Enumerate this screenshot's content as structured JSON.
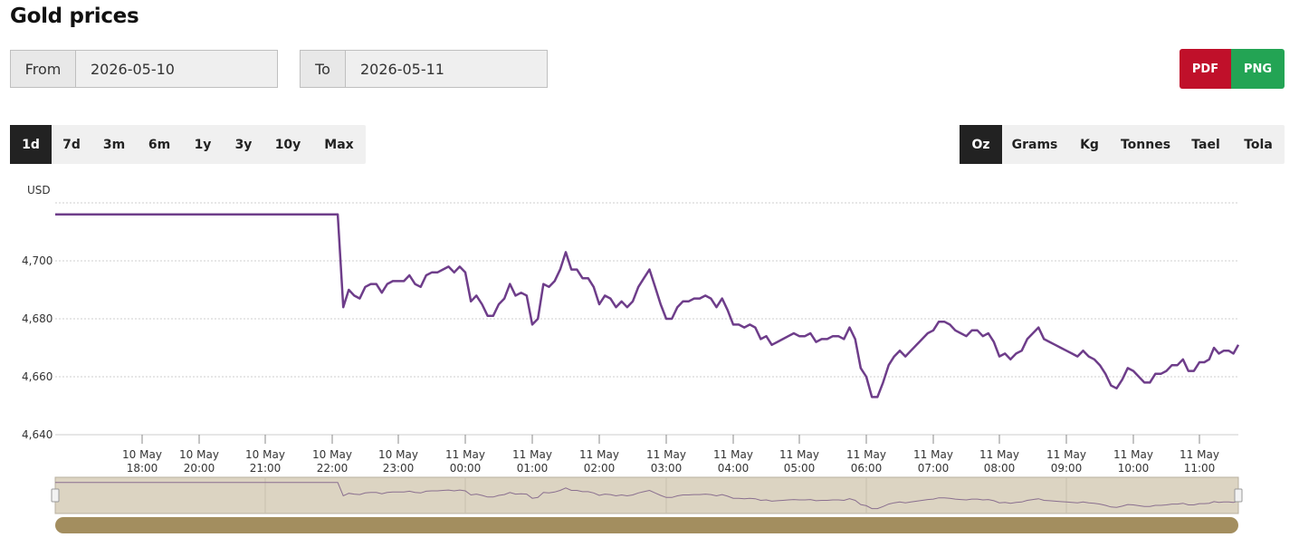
{
  "page": {
    "title": "Gold prices"
  },
  "date_range": {
    "from_label": "From",
    "from_value": "2026-05-10",
    "to_label": "To",
    "to_value": "2026-05-11"
  },
  "export": {
    "pdf_label": "PDF",
    "png_label": "PNG",
    "pdf_color": "#c0102a",
    "png_color": "#23a454"
  },
  "range_buttons": [
    {
      "label": "1d",
      "active": true
    },
    {
      "label": "7d",
      "active": false
    },
    {
      "label": "3m",
      "active": false
    },
    {
      "label": "6m",
      "active": false
    },
    {
      "label": "1y",
      "active": false
    },
    {
      "label": "3y",
      "active": false
    },
    {
      "label": "10y",
      "active": false
    },
    {
      "label": "Max",
      "active": false
    }
  ],
  "unit_buttons": [
    {
      "label": "Oz",
      "active": true
    },
    {
      "label": "Grams",
      "active": false
    },
    {
      "label": "Kg",
      "active": false
    },
    {
      "label": "Tonnes",
      "active": false
    },
    {
      "label": "Tael",
      "active": false
    },
    {
      "label": "Tola",
      "active": false
    }
  ],
  "chart_data": {
    "type": "line",
    "title": "",
    "ylabel": "USD",
    "ylim": [
      4640,
      4720
    ],
    "yticks": [
      4640,
      4660,
      4680,
      4700
    ],
    "ytick_labels": [
      "4,640",
      "4,660",
      "4,680",
      "4,700"
    ],
    "grid": true,
    "line_color": "#6e3d8a",
    "navigator_fill": "#dcd4c2",
    "scrollbar_color": "#a38e5f",
    "x_range": [
      "10 May 16:10",
      "11 May 11:40"
    ],
    "x_ticks": [
      {
        "label": [
          "10 May",
          "18:00"
        ],
        "x": "10 May 18:00"
      },
      {
        "label": [
          "10 May",
          "20:00"
        ],
        "x": "10 May 20:00"
      },
      {
        "label": [
          "10 May",
          "21:00"
        ],
        "x": "10 May 21:00"
      },
      {
        "label": [
          "10 May",
          "22:00"
        ],
        "x": "10 May 22:00"
      },
      {
        "label": [
          "10 May",
          "23:00"
        ],
        "x": "10 May 23:00"
      },
      {
        "label": [
          "11 May",
          "00:00"
        ],
        "x": "11 May 00:00"
      },
      {
        "label": [
          "11 May",
          "01:00"
        ],
        "x": "11 May 01:00"
      },
      {
        "label": [
          "11 May",
          "02:00"
        ],
        "x": "11 May 02:00"
      },
      {
        "label": [
          "11 May",
          "03:00"
        ],
        "x": "11 May 03:00"
      },
      {
        "label": [
          "11 May",
          "04:00"
        ],
        "x": "11 May 04:00"
      },
      {
        "label": [
          "11 May",
          "05:00"
        ],
        "x": "11 May 05:00"
      },
      {
        "label": [
          "11 May",
          "06:00"
        ],
        "x": "11 May 06:00"
      },
      {
        "label": [
          "11 May",
          "07:00"
        ],
        "x": "11 May 07:00"
      },
      {
        "label": [
          "11 May",
          "08:00"
        ],
        "x": "11 May 08:00"
      },
      {
        "label": [
          "11 May",
          "09:00"
        ],
        "x": "11 May 09:00"
      },
      {
        "label": [
          "11 May",
          "10:00"
        ],
        "x": "11 May 10:00"
      },
      {
        "label": [
          "11 May",
          "11:00"
        ],
        "x": "11 May 11:00"
      }
    ],
    "series": [
      {
        "x": [
          "10 May 16:10",
          "10 May 22:05",
          "10 May 22:10",
          "10 May 22:15",
          "10 May 22:20",
          "10 May 22:25",
          "10 May 22:30",
          "10 May 22:35",
          "10 May 22:40",
          "10 May 22:45",
          "10 May 22:50",
          "10 May 22:55",
          "10 May 23:00",
          "10 May 23:05",
          "10 May 23:10",
          "10 May 23:15",
          "10 May 23:20",
          "10 May 23:25",
          "10 May 23:30",
          "10 May 23:35",
          "10 May 23:40",
          "10 May 23:45",
          "10 May 23:50",
          "10 May 23:55",
          "11 May 00:00",
          "11 May 00:05",
          "11 May 00:10",
          "11 May 00:15",
          "11 May 00:20",
          "11 May 00:25",
          "11 May 00:30",
          "11 May 00:35",
          "11 May 00:40",
          "11 May 00:45",
          "11 May 00:50",
          "11 May 00:55",
          "11 May 01:00",
          "11 May 01:05",
          "11 May 01:10",
          "11 May 01:15",
          "11 May 01:20",
          "11 May 01:25",
          "11 May 01:30",
          "11 May 01:35",
          "11 May 01:40",
          "11 May 01:45",
          "11 May 01:50",
          "11 May 01:55",
          "11 May 02:00",
          "11 May 02:05",
          "11 May 02:10",
          "11 May 02:15",
          "11 May 02:20",
          "11 May 02:25",
          "11 May 02:30",
          "11 May 02:35",
          "11 May 02:40",
          "11 May 02:45",
          "11 May 02:50",
          "11 May 02:55",
          "11 May 03:00",
          "11 May 03:05",
          "11 May 03:10",
          "11 May 03:15",
          "11 May 03:20",
          "11 May 03:25",
          "11 May 03:30",
          "11 May 03:35",
          "11 May 03:40",
          "11 May 03:45",
          "11 May 03:50",
          "11 May 03:55",
          "11 May 04:00",
          "11 May 04:05",
          "11 May 04:10",
          "11 May 04:15",
          "11 May 04:20",
          "11 May 04:25",
          "11 May 04:30",
          "11 May 04:35",
          "11 May 04:40",
          "11 May 04:45",
          "11 May 04:50",
          "11 May 04:55",
          "11 May 05:00",
          "11 May 05:05",
          "11 May 05:10",
          "11 May 05:15",
          "11 May 05:20",
          "11 May 05:25",
          "11 May 05:30",
          "11 May 05:35",
          "11 May 05:40",
          "11 May 05:45",
          "11 May 05:50",
          "11 May 05:55",
          "11 May 06:00",
          "11 May 06:05",
          "11 May 06:10",
          "11 May 06:15",
          "11 May 06:20",
          "11 May 06:25",
          "11 May 06:30",
          "11 May 06:35",
          "11 May 06:40",
          "11 May 06:45",
          "11 May 06:50",
          "11 May 06:55",
          "11 May 07:00",
          "11 May 07:05",
          "11 May 07:10",
          "11 May 07:15",
          "11 May 07:20",
          "11 May 07:25",
          "11 May 07:30",
          "11 May 07:35",
          "11 May 07:40",
          "11 May 07:45",
          "11 May 07:50",
          "11 May 07:55",
          "11 May 08:00",
          "11 May 08:05",
          "11 May 08:10",
          "11 May 08:15",
          "11 May 08:20",
          "11 May 08:25",
          "11 May 08:30",
          "11 May 08:35",
          "11 May 08:40",
          "11 May 08:45",
          "11 May 08:50",
          "11 May 08:55",
          "11 May 09:00",
          "11 May 09:05",
          "11 May 09:10",
          "11 May 09:15",
          "11 May 09:20",
          "11 May 09:25",
          "11 May 09:30",
          "11 May 09:35",
          "11 May 09:40",
          "11 May 09:45",
          "11 May 09:50",
          "11 May 09:55",
          "11 May 10:00",
          "11 May 10:05",
          "11 May 10:10",
          "11 May 10:15",
          "11 May 10:20",
          "11 May 10:25",
          "11 May 10:30",
          "11 May 10:35",
          "11 May 10:40",
          "11 May 10:45",
          "11 May 10:50",
          "11 May 10:55",
          "11 May 11:00",
          "11 May 11:05",
          "11 May 11:10",
          "11 May 11:15",
          "11 May 11:20",
          "11 May 11:25",
          "11 May 11:30",
          "11 May 11:35",
          "11 May 11:40"
        ],
        "y": [
          4716,
          4716,
          4684,
          4690,
          4688,
          4687,
          4691,
          4692,
          4692,
          4689,
          4692,
          4693,
          4693,
          4693,
          4695,
          4692,
          4691,
          4695,
          4696,
          4696,
          4697,
          4698,
          4696,
          4698,
          4696,
          4686,
          4688,
          4685,
          4681,
          4681,
          4685,
          4687,
          4692,
          4688,
          4689,
          4688,
          4678,
          4680,
          4692,
          4691,
          4693,
          4697,
          4703,
          4697,
          4697,
          4694,
          4694,
          4691,
          4685,
          4688,
          4687,
          4684,
          4686,
          4684,
          4686,
          4691,
          4694,
          4697,
          4691,
          4685,
          4680,
          4680,
          4684,
          4686,
          4686,
          4687,
          4687,
          4688,
          4687,
          4684,
          4687,
          4683,
          4678,
          4678,
          4677,
          4678,
          4677,
          4673,
          4674,
          4671,
          4672,
          4673,
          4674,
          4675,
          4674,
          4674,
          4675,
          4672,
          4673,
          4673,
          4674,
          4674,
          4673,
          4677,
          4673,
          4663,
          4660,
          4653,
          4653,
          4658,
          4664,
          4667,
          4669,
          4667,
          4669,
          4671,
          4673,
          4675,
          4676,
          4679,
          4679,
          4678,
          4676,
          4675,
          4674,
          4676,
          4676,
          4674,
          4675,
          4672,
          4667,
          4668,
          4666,
          4668,
          4669,
          4673,
          4675,
          4677,
          4673,
          4672,
          4671,
          4670,
          4669,
          4668,
          4667,
          4669,
          4667,
          4666,
          4664,
          4661,
          4657,
          4656,
          4659,
          4663,
          4662,
          4660,
          4658,
          4658,
          4661,
          4661,
          4662,
          4664,
          4664,
          4666,
          4662,
          4662,
          4665,
          4665,
          4666,
          4670,
          4668,
          4669,
          4669,
          4668,
          4671
        ]
      }
    ]
  }
}
